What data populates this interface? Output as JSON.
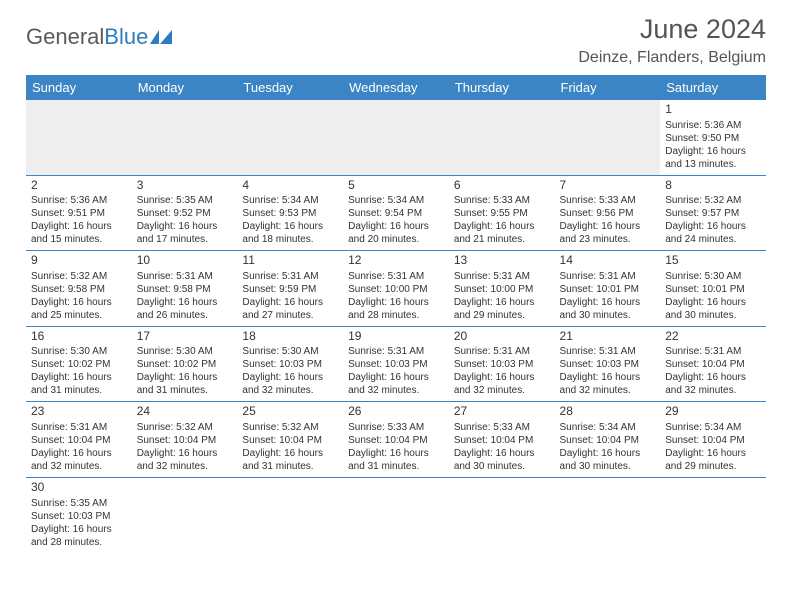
{
  "brand": {
    "part1": "General",
    "part2": "Blue"
  },
  "title": "June 2024",
  "location": "Deinze, Flanders, Belgium",
  "dayHeaders": [
    "Sunday",
    "Monday",
    "Tuesday",
    "Wednesday",
    "Thursday",
    "Friday",
    "Saturday"
  ],
  "colors": {
    "headerBg": "#3b85c4",
    "brandBlue": "#2f7bbf",
    "textGray": "#555"
  },
  "weeks": [
    [
      null,
      null,
      null,
      null,
      null,
      null,
      {
        "n": "1",
        "sr": "Sunrise: 5:36 AM",
        "ss": "Sunset: 9:50 PM",
        "d1": "Daylight: 16 hours",
        "d2": "and 13 minutes."
      }
    ],
    [
      {
        "n": "2",
        "sr": "Sunrise: 5:36 AM",
        "ss": "Sunset: 9:51 PM",
        "d1": "Daylight: 16 hours",
        "d2": "and 15 minutes."
      },
      {
        "n": "3",
        "sr": "Sunrise: 5:35 AM",
        "ss": "Sunset: 9:52 PM",
        "d1": "Daylight: 16 hours",
        "d2": "and 17 minutes."
      },
      {
        "n": "4",
        "sr": "Sunrise: 5:34 AM",
        "ss": "Sunset: 9:53 PM",
        "d1": "Daylight: 16 hours",
        "d2": "and 18 minutes."
      },
      {
        "n": "5",
        "sr": "Sunrise: 5:34 AM",
        "ss": "Sunset: 9:54 PM",
        "d1": "Daylight: 16 hours",
        "d2": "and 20 minutes."
      },
      {
        "n": "6",
        "sr": "Sunrise: 5:33 AM",
        "ss": "Sunset: 9:55 PM",
        "d1": "Daylight: 16 hours",
        "d2": "and 21 minutes."
      },
      {
        "n": "7",
        "sr": "Sunrise: 5:33 AM",
        "ss": "Sunset: 9:56 PM",
        "d1": "Daylight: 16 hours",
        "d2": "and 23 minutes."
      },
      {
        "n": "8",
        "sr": "Sunrise: 5:32 AM",
        "ss": "Sunset: 9:57 PM",
        "d1": "Daylight: 16 hours",
        "d2": "and 24 minutes."
      }
    ],
    [
      {
        "n": "9",
        "sr": "Sunrise: 5:32 AM",
        "ss": "Sunset: 9:58 PM",
        "d1": "Daylight: 16 hours",
        "d2": "and 25 minutes."
      },
      {
        "n": "10",
        "sr": "Sunrise: 5:31 AM",
        "ss": "Sunset: 9:58 PM",
        "d1": "Daylight: 16 hours",
        "d2": "and 26 minutes."
      },
      {
        "n": "11",
        "sr": "Sunrise: 5:31 AM",
        "ss": "Sunset: 9:59 PM",
        "d1": "Daylight: 16 hours",
        "d2": "and 27 minutes."
      },
      {
        "n": "12",
        "sr": "Sunrise: 5:31 AM",
        "ss": "Sunset: 10:00 PM",
        "d1": "Daylight: 16 hours",
        "d2": "and 28 minutes."
      },
      {
        "n": "13",
        "sr": "Sunrise: 5:31 AM",
        "ss": "Sunset: 10:00 PM",
        "d1": "Daylight: 16 hours",
        "d2": "and 29 minutes."
      },
      {
        "n": "14",
        "sr": "Sunrise: 5:31 AM",
        "ss": "Sunset: 10:01 PM",
        "d1": "Daylight: 16 hours",
        "d2": "and 30 minutes."
      },
      {
        "n": "15",
        "sr": "Sunrise: 5:30 AM",
        "ss": "Sunset: 10:01 PM",
        "d1": "Daylight: 16 hours",
        "d2": "and 30 minutes."
      }
    ],
    [
      {
        "n": "16",
        "sr": "Sunrise: 5:30 AM",
        "ss": "Sunset: 10:02 PM",
        "d1": "Daylight: 16 hours",
        "d2": "and 31 minutes."
      },
      {
        "n": "17",
        "sr": "Sunrise: 5:30 AM",
        "ss": "Sunset: 10:02 PM",
        "d1": "Daylight: 16 hours",
        "d2": "and 31 minutes."
      },
      {
        "n": "18",
        "sr": "Sunrise: 5:30 AM",
        "ss": "Sunset: 10:03 PM",
        "d1": "Daylight: 16 hours",
        "d2": "and 32 minutes."
      },
      {
        "n": "19",
        "sr": "Sunrise: 5:31 AM",
        "ss": "Sunset: 10:03 PM",
        "d1": "Daylight: 16 hours",
        "d2": "and 32 minutes."
      },
      {
        "n": "20",
        "sr": "Sunrise: 5:31 AM",
        "ss": "Sunset: 10:03 PM",
        "d1": "Daylight: 16 hours",
        "d2": "and 32 minutes."
      },
      {
        "n": "21",
        "sr": "Sunrise: 5:31 AM",
        "ss": "Sunset: 10:03 PM",
        "d1": "Daylight: 16 hours",
        "d2": "and 32 minutes."
      },
      {
        "n": "22",
        "sr": "Sunrise: 5:31 AM",
        "ss": "Sunset: 10:04 PM",
        "d1": "Daylight: 16 hours",
        "d2": "and 32 minutes."
      }
    ],
    [
      {
        "n": "23",
        "sr": "Sunrise: 5:31 AM",
        "ss": "Sunset: 10:04 PM",
        "d1": "Daylight: 16 hours",
        "d2": "and 32 minutes."
      },
      {
        "n": "24",
        "sr": "Sunrise: 5:32 AM",
        "ss": "Sunset: 10:04 PM",
        "d1": "Daylight: 16 hours",
        "d2": "and 32 minutes."
      },
      {
        "n": "25",
        "sr": "Sunrise: 5:32 AM",
        "ss": "Sunset: 10:04 PM",
        "d1": "Daylight: 16 hours",
        "d2": "and 31 minutes."
      },
      {
        "n": "26",
        "sr": "Sunrise: 5:33 AM",
        "ss": "Sunset: 10:04 PM",
        "d1": "Daylight: 16 hours",
        "d2": "and 31 minutes."
      },
      {
        "n": "27",
        "sr": "Sunrise: 5:33 AM",
        "ss": "Sunset: 10:04 PM",
        "d1": "Daylight: 16 hours",
        "d2": "and 30 minutes."
      },
      {
        "n": "28",
        "sr": "Sunrise: 5:34 AM",
        "ss": "Sunset: 10:04 PM",
        "d1": "Daylight: 16 hours",
        "d2": "and 30 minutes."
      },
      {
        "n": "29",
        "sr": "Sunrise: 5:34 AM",
        "ss": "Sunset: 10:04 PM",
        "d1": "Daylight: 16 hours",
        "d2": "and 29 minutes."
      }
    ],
    [
      {
        "n": "30",
        "sr": "Sunrise: 5:35 AM",
        "ss": "Sunset: 10:03 PM",
        "d1": "Daylight: 16 hours",
        "d2": "and 28 minutes."
      },
      null,
      null,
      null,
      null,
      null,
      null
    ]
  ]
}
